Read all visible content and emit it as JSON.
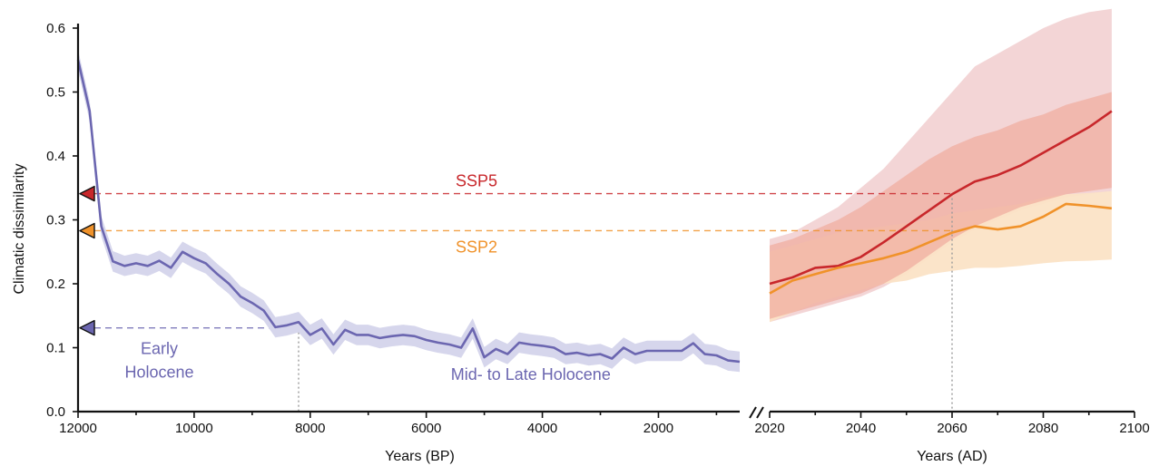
{
  "chart_data": [
    {
      "panel": "holocene",
      "type": "line",
      "xlabel": "Years (BP)",
      "ylabel": "Climatic dissimilarity",
      "xlim": [
        12000,
        600
      ],
      "ylim": [
        0,
        0.6
      ],
      "xticks": [
        12000,
        10000,
        8000,
        6000,
        4000,
        2000
      ],
      "yticks": [
        "0.0",
        "0.1",
        "0.2",
        "0.3",
        "0.4",
        "0.5",
        "0.6"
      ],
      "series": [
        {
          "color": "#6b66b0",
          "band_color": "#d6d6ec",
          "x": [
            12000,
            11800,
            11600,
            11400,
            11200,
            11000,
            10800,
            10600,
            10400,
            10200,
            10000,
            9800,
            9600,
            9400,
            9200,
            9000,
            8800,
            8600,
            8400,
            8200,
            8000,
            7800,
            7600,
            7400,
            7200,
            7000,
            6800,
            6600,
            6400,
            6200,
            6000,
            5800,
            5600,
            5400,
            5200,
            5000,
            4800,
            4600,
            4400,
            4200,
            4000,
            3800,
            3600,
            3400,
            3200,
            3000,
            2800,
            2600,
            2400,
            2200,
            2000,
            1800,
            1600,
            1400,
            1200,
            1000,
            800,
            600
          ],
          "y": [
            0.55,
            0.47,
            0.29,
            0.235,
            0.228,
            0.232,
            0.228,
            0.236,
            0.225,
            0.25,
            0.24,
            0.232,
            0.215,
            0.2,
            0.18,
            0.17,
            0.158,
            0.132,
            0.135,
            0.14,
            0.12,
            0.13,
            0.105,
            0.128,
            0.12,
            0.12,
            0.115,
            0.118,
            0.12,
            0.118,
            0.112,
            0.108,
            0.105,
            0.1,
            0.13,
            0.085,
            0.098,
            0.09,
            0.108,
            0.105,
            0.103,
            0.1,
            0.09,
            0.092,
            0.088,
            0.09,
            0.083,
            0.1,
            0.09,
            0.095,
            0.095,
            0.095,
            0.095,
            0.107,
            0.09,
            0.088,
            0.08,
            0.078
          ],
          "band_halfwidth": 0.016
        }
      ],
      "annotations": [
        {
          "text": "Early",
          "x": 10600,
          "y": 0.09
        },
        {
          "text": "Holocene",
          "x": 10600,
          "y": 0.053
        },
        {
          "text": "Mid- to Late Holocene",
          "x": 4200,
          "y": 0.05
        }
      ],
      "guide_vline": 8200,
      "guide_hline": 0.131
    },
    {
      "panel": "future",
      "type": "line",
      "xlabel": "Years (AD)",
      "xlim": [
        2020,
        2100
      ],
      "ylim": [
        0,
        0.6
      ],
      "xticks": [
        2020,
        2040,
        2060,
        2080,
        2100
      ],
      "series": [
        {
          "name": "SSP5",
          "color": "#c8272b",
          "inner_band_color": "#f0ada0",
          "outer_band_color": "#f2d0d2",
          "x": [
            2020,
            2025,
            2030,
            2035,
            2040,
            2045,
            2050,
            2055,
            2060,
            2065,
            2070,
            2075,
            2080,
            2085,
            2090,
            2095
          ],
          "y": [
            0.2,
            0.21,
            0.225,
            0.228,
            0.242,
            0.265,
            0.29,
            0.315,
            0.34,
            0.36,
            0.37,
            0.385,
            0.405,
            0.425,
            0.445,
            0.47
          ],
          "inner_low": [
            0.145,
            0.155,
            0.165,
            0.175,
            0.185,
            0.2,
            0.22,
            0.245,
            0.27,
            0.29,
            0.305,
            0.32,
            0.33,
            0.34,
            0.345,
            0.35
          ],
          "inner_high": [
            0.26,
            0.27,
            0.285,
            0.3,
            0.32,
            0.345,
            0.37,
            0.395,
            0.415,
            0.43,
            0.44,
            0.455,
            0.465,
            0.48,
            0.49,
            0.5
          ],
          "outer_low": [
            0.14,
            0.15,
            0.16,
            0.17,
            0.18,
            0.195,
            0.215,
            0.24,
            0.265,
            0.285,
            0.3,
            0.315,
            0.325,
            0.335,
            0.34,
            0.345
          ],
          "outer_high": [
            0.27,
            0.28,
            0.3,
            0.32,
            0.35,
            0.38,
            0.42,
            0.46,
            0.5,
            0.54,
            0.56,
            0.58,
            0.6,
            0.615,
            0.625,
            0.63
          ]
        },
        {
          "name": "SSP2",
          "color": "#f0922a",
          "band_color": "#fbe3c6",
          "x": [
            2020,
            2025,
            2030,
            2035,
            2040,
            2045,
            2050,
            2055,
            2060,
            2065,
            2070,
            2075,
            2080,
            2085,
            2090,
            2095
          ],
          "y": [
            0.185,
            0.205,
            0.215,
            0.225,
            0.232,
            0.24,
            0.25,
            0.265,
            0.28,
            0.29,
            0.285,
            0.29,
            0.305,
            0.325,
            0.322,
            0.318
          ],
          "band_low": [
            0.14,
            0.155,
            0.17,
            0.18,
            0.19,
            0.2,
            0.205,
            0.215,
            0.22,
            0.225,
            0.225,
            0.228,
            0.232,
            0.235,
            0.236,
            0.238
          ],
          "band_high": [
            0.25,
            0.26,
            0.27,
            0.28,
            0.285,
            0.29,
            0.295,
            0.3,
            0.31,
            0.315,
            0.32,
            0.325,
            0.335,
            0.34,
            0.342,
            0.345
          ]
        }
      ],
      "labels": [
        {
          "text": "SSP5",
          "color": "#c8272b",
          "value": 0.341
        },
        {
          "text": "SSP2",
          "color": "#f0922a",
          "value": 0.283
        }
      ],
      "guide_vline": 2060
    }
  ],
  "markers": [
    {
      "value": 0.341,
      "color": "#c8272b"
    },
    {
      "value": 0.283,
      "color": "#f0922a"
    },
    {
      "value": 0.131,
      "color": "#6b66b0"
    }
  ]
}
